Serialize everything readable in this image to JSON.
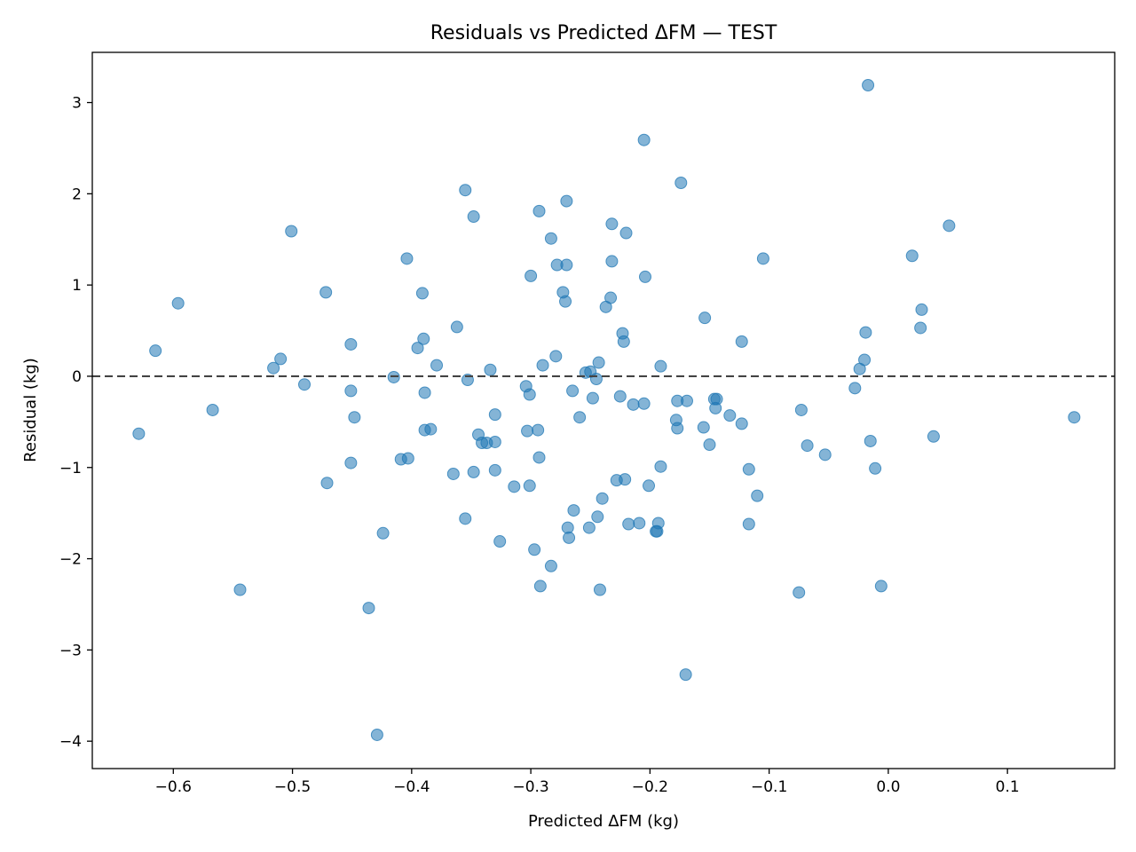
{
  "chart_data": {
    "type": "scatter",
    "title": "Residuals vs Predicted ΔFM — TEST",
    "xlabel": "Predicted ΔFM (kg)",
    "ylabel": "Residual (kg)",
    "xlim": [
      -0.668,
      0.19
    ],
    "ylim": [
      -4.3,
      3.55
    ],
    "xticks": [
      -0.6,
      -0.5,
      -0.4,
      -0.3,
      -0.2,
      -0.1,
      0.0,
      0.1
    ],
    "xtick_labels": [
      "−0.6",
      "−0.5",
      "−0.4",
      "−0.3",
      "−0.2",
      "−0.1",
      "0.0",
      "0.1"
    ],
    "yticks": [
      -4,
      -3,
      -2,
      -1,
      0,
      1,
      2,
      3
    ],
    "ytick_labels": [
      "−4",
      "−3",
      "−2",
      "−1",
      "0",
      "1",
      "2",
      "3"
    ],
    "reference_line": {
      "y": 0,
      "style": "dashed",
      "color": "#444444"
    },
    "grid": false,
    "point_color": "#1f77b4",
    "point_opacity": 0.55,
    "series": [
      {
        "points": [
          [
            -0.629,
            -0.63
          ],
          [
            -0.615,
            0.28
          ],
          [
            -0.596,
            0.8
          ],
          [
            -0.567,
            -0.37
          ],
          [
            -0.544,
            -2.34
          ],
          [
            -0.516,
            0.09
          ],
          [
            -0.51,
            0.19
          ],
          [
            -0.501,
            1.59
          ],
          [
            -0.49,
            -0.09
          ],
          [
            -0.472,
            0.92
          ],
          [
            -0.471,
            -1.17
          ],
          [
            -0.451,
            0.35
          ],
          [
            -0.451,
            -0.16
          ],
          [
            -0.451,
            -0.95
          ],
          [
            -0.448,
            -0.45
          ],
          [
            -0.436,
            -2.54
          ],
          [
            -0.429,
            -3.93
          ],
          [
            -0.424,
            -1.72
          ],
          [
            -0.415,
            -0.01
          ],
          [
            -0.409,
            -0.91
          ],
          [
            -0.404,
            1.29
          ],
          [
            -0.403,
            -0.9
          ],
          [
            -0.395,
            0.31
          ],
          [
            -0.391,
            0.91
          ],
          [
            -0.39,
            0.41
          ],
          [
            -0.389,
            -0.18
          ],
          [
            -0.389,
            -0.59
          ],
          [
            -0.384,
            -0.58
          ],
          [
            -0.379,
            0.12
          ],
          [
            -0.365,
            -1.07
          ],
          [
            -0.362,
            0.54
          ],
          [
            -0.355,
            2.04
          ],
          [
            -0.355,
            -1.56
          ],
          [
            -0.353,
            -0.04
          ],
          [
            -0.348,
            1.75
          ],
          [
            -0.348,
            -1.05
          ],
          [
            -0.344,
            -0.64
          ],
          [
            -0.341,
            -0.73
          ],
          [
            -0.337,
            -0.73
          ],
          [
            -0.334,
            0.07
          ],
          [
            -0.33,
            -0.42
          ],
          [
            -0.33,
            -0.72
          ],
          [
            -0.33,
            -1.03
          ],
          [
            -0.326,
            -1.81
          ],
          [
            -0.314,
            -1.21
          ],
          [
            -0.304,
            -0.11
          ],
          [
            -0.303,
            -0.6
          ],
          [
            -0.301,
            -0.2
          ],
          [
            -0.301,
            -1.2
          ],
          [
            -0.3,
            1.1
          ],
          [
            -0.297,
            -1.9
          ],
          [
            -0.294,
            -0.59
          ],
          [
            -0.293,
            1.81
          ],
          [
            -0.293,
            -0.89
          ],
          [
            -0.292,
            -2.3
          ],
          [
            -0.29,
            0.12
          ],
          [
            -0.283,
            1.51
          ],
          [
            -0.283,
            -2.08
          ],
          [
            -0.279,
            0.22
          ],
          [
            -0.278,
            1.22
          ],
          [
            -0.273,
            0.92
          ],
          [
            -0.271,
            0.82
          ],
          [
            -0.27,
            1.92
          ],
          [
            -0.27,
            1.22
          ],
          [
            -0.269,
            -1.66
          ],
          [
            -0.268,
            -1.77
          ],
          [
            -0.265,
            -0.16
          ],
          [
            -0.264,
            -1.47
          ],
          [
            -0.259,
            -0.45
          ],
          [
            -0.254,
            0.04
          ],
          [
            -0.251,
            -1.66
          ],
          [
            -0.25,
            0.05
          ],
          [
            -0.248,
            -0.24
          ],
          [
            -0.245,
            -0.03
          ],
          [
            -0.244,
            -1.54
          ],
          [
            -0.243,
            0.15
          ],
          [
            -0.242,
            -2.34
          ],
          [
            -0.24,
            -1.34
          ],
          [
            -0.237,
            0.76
          ],
          [
            -0.233,
            0.86
          ],
          [
            -0.232,
            1.67
          ],
          [
            -0.232,
            1.26
          ],
          [
            -0.228,
            -1.14
          ],
          [
            -0.225,
            -0.22
          ],
          [
            -0.223,
            0.47
          ],
          [
            -0.222,
            0.38
          ],
          [
            -0.221,
            -1.13
          ],
          [
            -0.22,
            1.57
          ],
          [
            -0.218,
            -1.62
          ],
          [
            -0.214,
            -0.31
          ],
          [
            -0.209,
            -1.61
          ],
          [
            -0.205,
            -0.3
          ],
          [
            -0.205,
            2.59
          ],
          [
            -0.204,
            1.09
          ],
          [
            -0.201,
            -1.2
          ],
          [
            -0.195,
            -1.7
          ],
          [
            -0.194,
            -1.7
          ],
          [
            -0.193,
            -1.61
          ],
          [
            -0.191,
            0.11
          ],
          [
            -0.191,
            -0.99
          ],
          [
            -0.177,
            -0.27
          ],
          [
            -0.178,
            -0.48
          ],
          [
            -0.177,
            -0.57
          ],
          [
            -0.174,
            2.12
          ],
          [
            -0.169,
            -0.27
          ],
          [
            -0.17,
            -3.27
          ],
          [
            -0.154,
            0.64
          ],
          [
            -0.155,
            -0.56
          ],
          [
            -0.15,
            -0.75
          ],
          [
            -0.146,
            -0.25
          ],
          [
            -0.145,
            -0.35
          ],
          [
            -0.144,
            -0.25
          ],
          [
            -0.133,
            -0.43
          ],
          [
            -0.123,
            0.38
          ],
          [
            -0.123,
            -0.52
          ],
          [
            -0.117,
            -1.02
          ],
          [
            -0.117,
            -1.62
          ],
          [
            -0.11,
            -1.31
          ],
          [
            -0.105,
            1.29
          ],
          [
            -0.073,
            -0.37
          ],
          [
            -0.075,
            -2.37
          ],
          [
            -0.068,
            -0.76
          ],
          [
            -0.053,
            -0.86
          ],
          [
            -0.028,
            -0.13
          ],
          [
            -0.024,
            0.08
          ],
          [
            -0.02,
            0.18
          ],
          [
            -0.019,
            0.48
          ],
          [
            -0.017,
            3.19
          ],
          [
            -0.015,
            -0.71
          ],
          [
            -0.011,
            -1.01
          ],
          [
            -0.006,
            -2.3
          ],
          [
            0.02,
            1.32
          ],
          [
            0.027,
            0.53
          ],
          [
            0.028,
            0.73
          ],
          [
            0.038,
            -0.66
          ],
          [
            0.051,
            1.65
          ],
          [
            0.156,
            -0.45
          ]
        ]
      }
    ]
  }
}
